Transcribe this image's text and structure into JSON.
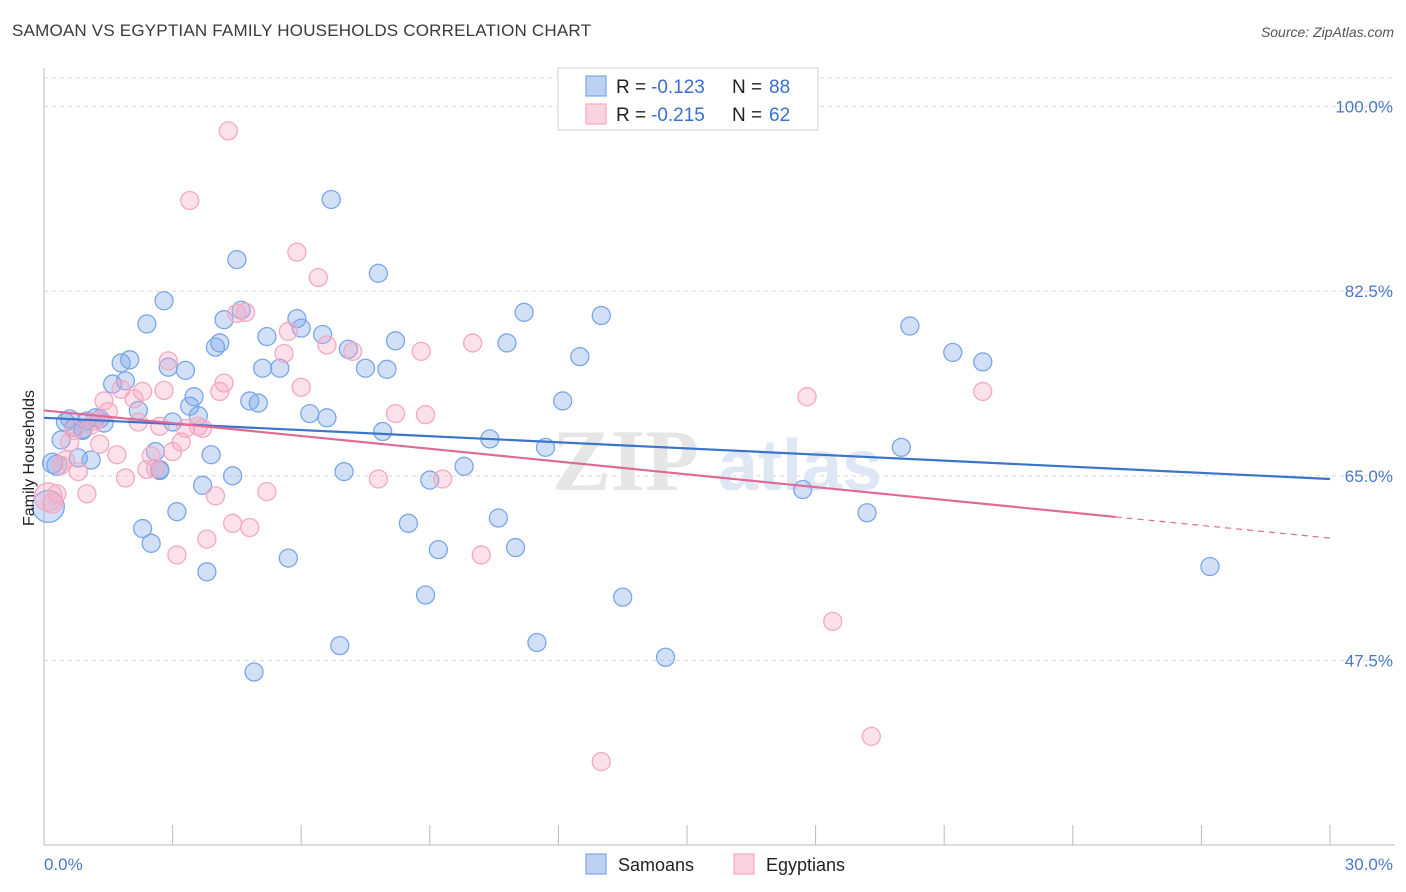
{
  "header": {
    "title": "SAMOAN VS EGYPTIAN FAMILY HOUSEHOLDS CORRELATION CHART",
    "source": "Source: ZipAtlas.com"
  },
  "chart_data": {
    "type": "scatter",
    "ylabel": "Family Households",
    "xlim": [
      0.0,
      30.0
    ],
    "ylim": [
      30.0,
      103.0
    ],
    "x_tick_labels": [
      "0.0%",
      "30.0%"
    ],
    "y_ticks": [
      47.5,
      65.0,
      82.5,
      100.0
    ],
    "y_tick_labels": [
      "47.5%",
      "65.0%",
      "82.5%",
      "100.0%"
    ],
    "grid": true,
    "legend_position": "top-center",
    "watermark": "ZIPatlas",
    "series": [
      {
        "name": "Samoans",
        "color": "#7aa6e8",
        "line_color": "#3b74c9",
        "R": "-0.123",
        "N": "88",
        "trend": {
          "x": [
            0.0,
            30.0
          ],
          "y": [
            70.5,
            64.7
          ]
        },
        "points": [
          [
            0.1,
            62.1
          ],
          [
            0.2,
            66.2
          ],
          [
            0.3,
            66.0
          ],
          [
            0.4,
            68.4
          ],
          [
            0.5,
            70.1
          ],
          [
            0.6,
            70.4
          ],
          [
            0.7,
            69.6
          ],
          [
            0.8,
            66.7
          ],
          [
            0.9,
            69.4
          ],
          [
            1.0,
            70.2
          ],
          [
            1.1,
            66.5
          ],
          [
            1.2,
            70.5
          ],
          [
            1.3,
            70.4
          ],
          [
            1.4,
            70.0
          ],
          [
            1.6,
            73.7
          ],
          [
            1.8,
            75.7
          ],
          [
            1.9,
            74.0
          ],
          [
            2.0,
            76.0
          ],
          [
            2.2,
            71.2
          ],
          [
            2.3,
            60.0
          ],
          [
            2.4,
            79.4
          ],
          [
            2.5,
            58.6
          ],
          [
            2.6,
            67.3
          ],
          [
            2.7,
            65.6
          ],
          [
            2.8,
            81.6
          ],
          [
            2.9,
            75.3
          ],
          [
            3.0,
            70.1
          ],
          [
            3.1,
            61.6
          ],
          [
            3.3,
            75.0
          ],
          [
            3.4,
            71.6
          ],
          [
            3.5,
            72.5
          ],
          [
            3.6,
            70.7
          ],
          [
            3.7,
            64.1
          ],
          [
            3.8,
            55.9
          ],
          [
            3.9,
            67.0
          ],
          [
            4.0,
            77.2
          ],
          [
            4.1,
            77.6
          ],
          [
            4.2,
            79.8
          ],
          [
            4.4,
            65.0
          ],
          [
            4.5,
            85.5
          ],
          [
            4.6,
            80.7
          ],
          [
            4.8,
            72.1
          ],
          [
            4.9,
            46.4
          ],
          [
            5.0,
            71.9
          ],
          [
            5.1,
            75.2
          ],
          [
            5.2,
            78.2
          ],
          [
            5.5,
            75.2
          ],
          [
            5.7,
            57.2
          ],
          [
            5.9,
            79.9
          ],
          [
            6.0,
            79.0
          ],
          [
            6.2,
            70.9
          ],
          [
            6.5,
            78.4
          ],
          [
            6.6,
            70.5
          ],
          [
            6.7,
            91.2
          ],
          [
            6.9,
            48.9
          ],
          [
            7.0,
            65.4
          ],
          [
            7.1,
            77.0
          ],
          [
            7.5,
            75.2
          ],
          [
            7.8,
            84.2
          ],
          [
            7.9,
            69.2
          ],
          [
            8.0,
            75.1
          ],
          [
            8.2,
            77.8
          ],
          [
            8.5,
            60.5
          ],
          [
            8.9,
            53.7
          ],
          [
            9.0,
            64.6
          ],
          [
            9.2,
            58.0
          ],
          [
            9.8,
            65.9
          ],
          [
            10.4,
            68.5
          ],
          [
            10.6,
            61.0
          ],
          [
            10.8,
            77.6
          ],
          [
            11.0,
            58.2
          ],
          [
            11.2,
            80.5
          ],
          [
            11.5,
            49.2
          ],
          [
            11.7,
            67.7
          ],
          [
            12.1,
            72.1
          ],
          [
            12.5,
            76.3
          ],
          [
            13.0,
            80.2
          ],
          [
            13.5,
            53.5
          ],
          [
            14.5,
            47.8
          ],
          [
            17.7,
            63.7
          ],
          [
            19.2,
            61.5
          ],
          [
            20.0,
            67.7
          ],
          [
            20.2,
            79.2
          ],
          [
            21.2,
            76.7
          ],
          [
            21.9,
            75.8
          ],
          [
            27.2,
            56.4
          ],
          [
            2.7,
            65.5
          ],
          [
            0.9,
            69.3
          ]
        ],
        "radii": [
          16,
          10,
          10,
          9,
          9,
          9,
          9,
          9,
          9,
          9,
          9,
          9,
          9,
          9,
          9,
          9,
          9,
          9,
          9,
          9,
          9,
          9,
          9,
          9,
          9,
          9,
          9,
          9,
          9,
          9,
          9,
          9,
          9,
          9,
          9,
          9,
          9,
          9,
          9,
          9,
          9,
          9,
          9,
          9,
          9,
          9,
          9,
          9,
          9,
          9,
          9,
          9,
          9,
          9,
          9,
          9,
          9,
          9,
          9,
          9,
          9,
          9,
          9,
          9,
          9,
          9,
          9,
          9,
          9,
          9,
          9,
          9,
          9,
          9,
          9,
          9,
          9,
          9,
          9,
          9,
          9,
          9,
          9,
          9,
          9,
          9,
          9,
          9
        ]
      },
      {
        "name": "Egyptians",
        "color": "#f5a8c2",
        "line_color": "#e06a97",
        "R": "-0.215",
        "N": "62",
        "trend": {
          "x": [
            0.0,
            25.0
          ],
          "y": [
            71.2,
            61.1
          ]
        },
        "trend_dashed": {
          "x": [
            25.0,
            30.0
          ],
          "y": [
            61.1,
            59.1
          ]
        },
        "points": [
          [
            0.1,
            63.0
          ],
          [
            0.2,
            62.4
          ],
          [
            0.3,
            63.3
          ],
          [
            0.4,
            66.0
          ],
          [
            0.5,
            66.5
          ],
          [
            0.6,
            68.2
          ],
          [
            0.7,
            69.3
          ],
          [
            0.8,
            65.4
          ],
          [
            1.0,
            63.3
          ],
          [
            1.1,
            69.8
          ],
          [
            1.2,
            70.2
          ],
          [
            1.3,
            68.0
          ],
          [
            1.4,
            72.1
          ],
          [
            1.5,
            71.1
          ],
          [
            1.7,
            67.0
          ],
          [
            1.8,
            73.2
          ],
          [
            1.9,
            64.8
          ],
          [
            2.1,
            72.3
          ],
          [
            2.2,
            70.1
          ],
          [
            2.3,
            73.0
          ],
          [
            2.4,
            65.6
          ],
          [
            2.5,
            66.9
          ],
          [
            2.6,
            65.7
          ],
          [
            2.7,
            69.7
          ],
          [
            2.8,
            73.1
          ],
          [
            2.9,
            75.9
          ],
          [
            3.0,
            67.3
          ],
          [
            3.1,
            57.5
          ],
          [
            3.2,
            68.2
          ],
          [
            3.3,
            69.5
          ],
          [
            3.4,
            91.1
          ],
          [
            3.6,
            69.7
          ],
          [
            3.7,
            69.5
          ],
          [
            3.8,
            59.0
          ],
          [
            4.0,
            63.1
          ],
          [
            4.1,
            73.0
          ],
          [
            4.2,
            73.8
          ],
          [
            4.3,
            97.7
          ],
          [
            4.4,
            60.5
          ],
          [
            4.5,
            80.4
          ],
          [
            4.7,
            80.5
          ],
          [
            4.8,
            60.1
          ],
          [
            5.2,
            63.5
          ],
          [
            5.6,
            76.6
          ],
          [
            5.7,
            78.7
          ],
          [
            5.9,
            86.2
          ],
          [
            6.0,
            73.4
          ],
          [
            6.4,
            83.8
          ],
          [
            6.6,
            77.4
          ],
          [
            7.2,
            76.8
          ],
          [
            7.8,
            64.7
          ],
          [
            8.2,
            70.9
          ],
          [
            8.8,
            76.8
          ],
          [
            8.9,
            70.8
          ],
          [
            9.3,
            64.7
          ],
          [
            10.0,
            77.6
          ],
          [
            10.2,
            57.5
          ],
          [
            13.0,
            37.9
          ],
          [
            17.8,
            72.5
          ],
          [
            18.4,
            51.2
          ],
          [
            19.3,
            40.3
          ],
          [
            21.9,
            73.0
          ]
        ],
        "radii": [
          14,
          10,
          9,
          9,
          9,
          9,
          9,
          9,
          9,
          9,
          9,
          9,
          9,
          9,
          9,
          9,
          9,
          9,
          9,
          9,
          9,
          9,
          9,
          9,
          9,
          9,
          9,
          9,
          9,
          9,
          9,
          9,
          9,
          9,
          9,
          9,
          9,
          9,
          9,
          9,
          9,
          9,
          9,
          9,
          9,
          9,
          9,
          9,
          9,
          9,
          9,
          9,
          9,
          9,
          9,
          9,
          9,
          9,
          9,
          9,
          9,
          9
        ]
      }
    ]
  },
  "legend": {
    "r_label": "R =",
    "n_label": "N ="
  }
}
